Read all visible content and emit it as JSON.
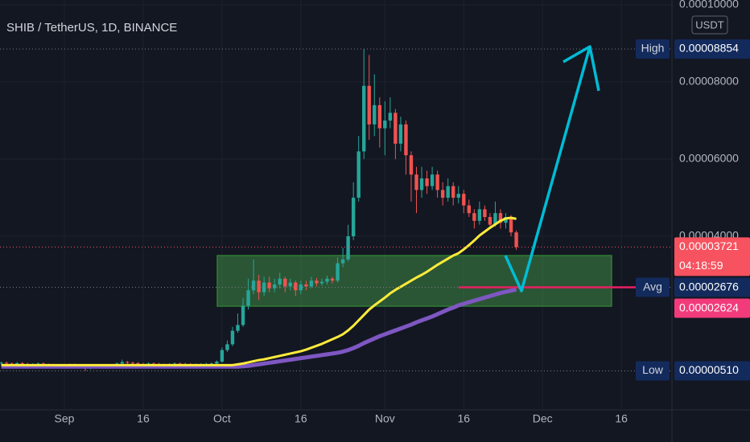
{
  "chart_data": {
    "type": "candlestick",
    "title": "SHIB / TetherUS, 1D, BINANCE",
    "currency": "USDT",
    "up_color": "#26a69a",
    "down_color": "#ef5350",
    "grid": true,
    "ylim": [
      -5e-06,
      0.00010125
    ],
    "yticks": [
      {
        "value": 0.0001,
        "label": "0.00010000"
      },
      {
        "value": 8e-05,
        "label": "0.00008000"
      },
      {
        "value": 6e-05,
        "label": "0.00006000"
      },
      {
        "value": 4e-05,
        "label": "0.00004000"
      }
    ],
    "categories": [
      null,
      null,
      null,
      null,
      null,
      null,
      null,
      null,
      null,
      null,
      null,
      null,
      "Sep",
      null,
      null,
      null,
      null,
      null,
      null,
      null,
      null,
      null,
      null,
      null,
      null,
      null,
      null,
      "16",
      null,
      null,
      null,
      null,
      null,
      null,
      null,
      null,
      null,
      null,
      null,
      null,
      null,
      null,
      "Oct",
      null,
      null,
      null,
      null,
      null,
      null,
      null,
      null,
      null,
      null,
      null,
      null,
      null,
      null,
      "16",
      null,
      null,
      null,
      null,
      null,
      null,
      null,
      null,
      null,
      null,
      null,
      null,
      null,
      null,
      null,
      "Nov",
      null,
      null,
      null,
      null,
      null,
      null,
      null,
      null,
      null,
      null,
      null,
      null,
      null,
      null,
      "16",
      null,
      null,
      null,
      null,
      null,
      null,
      null,
      null,
      null,
      null,
      null,
      null,
      null,
      null,
      "Dec",
      null,
      null,
      null,
      null,
      null,
      null,
      null,
      null,
      null,
      null,
      null,
      null,
      null,
      null,
      "16"
    ],
    "open": [
      7e-06,
      7.2e-06,
      7e-06,
      6.8e-06,
      7.1e-06,
      6.9e-06,
      6.6e-06,
      6.8e-06,
      7e-06,
      6.7e-06,
      6.5e-06,
      6.6e-06,
      6.4e-06,
      6.5e-06,
      6.7e-06,
      6.6e-06,
      6.2e-06,
      5.8e-06,
      6e-06,
      6.3e-06,
      6.5e-06,
      6.4e-06,
      6.6e-06,
      7e-06,
      7.4e-06,
      7.2e-06,
      7.1e-06,
      6.9e-06,
      6.8e-06,
      7e-06,
      6.9e-06,
      6.7e-06,
      6.6e-06,
      6.8e-06,
      7e-06,
      6.9e-06,
      6.8e-06,
      6.7e-06,
      6.6e-06,
      6.8e-06,
      6.9e-06,
      7e-06,
      7.5e-06,
      1.05e-05,
      1.2e-05,
      1.55e-05,
      1.7e-05,
      2.2e-05,
      2.6e-05,
      2.85e-05,
      2.55e-05,
      2.8e-05,
      2.65e-05,
      2.75e-05,
      2.9e-05,
      2.7e-05,
      2.8e-05,
      2.6e-05,
      2.75e-05,
      2.7e-05,
      2.85e-05,
      2.78e-05,
      2.82e-05,
      2.9e-05,
      2.85e-05,
      3.3e-05,
      3.4e-05,
      4e-05,
      5e-05,
      6.2e-05,
      7.9e-05,
      6.9e-05,
      7.4e-05,
      6.8e-05,
      7e-05,
      7.2e-05,
      6.4e-05,
      6.9e-05,
      6.1e-05,
      5.6e-05,
      5.2e-05,
      5.5e-05,
      5.3e-05,
      5.6e-05,
      5.2e-05,
      5e-05,
      5.3e-05,
      5e-05,
      5.1e-05,
      4.8e-05,
      4.6e-05,
      4.4e-05,
      4.7e-05,
      4.5e-05,
      4.3e-05,
      4.6e-05,
      4.35e-05,
      4.5e-05,
      4.1e-05,
      null,
      null,
      null,
      null,
      null,
      null,
      null,
      null,
      null,
      null,
      null,
      null,
      null,
      null,
      null,
      null,
      null,
      null,
      null,
      null
    ],
    "high": [
      7.5e-06,
      7.5e-06,
      7.3e-06,
      7.4e-06,
      7.4e-06,
      7.2e-06,
      7.1e-06,
      7.3e-06,
      7.3e-06,
      7e-06,
      6.9e-06,
      6.9e-06,
      6.8e-06,
      7e-06,
      7e-06,
      6.9e-06,
      6.5e-06,
      6.3e-06,
      6.6e-06,
      6.8e-06,
      6.8e-06,
      6.9e-06,
      7.3e-06,
      8e-06,
      7.7e-06,
      7.5e-06,
      7.4e-06,
      7.2e-06,
      7.3e-06,
      7.3e-06,
      7.2e-06,
      7e-06,
      7.1e-06,
      7.3e-06,
      7.3e-06,
      7.2e-06,
      7.1e-06,
      7e-06,
      7.1e-06,
      7.2e-06,
      7.3e-06,
      7.8e-06,
      1.12e-05,
      1.3e-05,
      1.65e-05,
      2e-05,
      2.4e-05,
      2.9e-05,
      3.4e-05,
      3e-05,
      2.95e-05,
      2.95e-05,
      2.9e-05,
      3.05e-05,
      2.95e-05,
      2.9e-05,
      2.85e-05,
      2.85e-05,
      2.85e-05,
      2.95e-05,
      2.92e-05,
      2.9e-05,
      2.98e-05,
      2.95e-05,
      3.45e-05,
      3.7e-05,
      4.3e-05,
      5.4e-05,
      6.6e-05,
      8.854e-05,
      8.7e-05,
      8.2e-05,
      7.6e-05,
      7.5e-05,
      7.6e-05,
      7.3e-05,
      7.1e-05,
      7e-05,
      6.2e-05,
      5.8e-05,
      5.8e-05,
      5.7e-05,
      5.8e-05,
      5.7e-05,
      5.4e-05,
      5.5e-05,
      5.4e-05,
      5.3e-05,
      5.2e-05,
      4.95e-05,
      4.7e-05,
      4.9e-05,
      4.8e-05,
      4.6e-05,
      4.9e-05,
      4.7e-05,
      4.6e-05,
      4.55e-05,
      4.15e-05,
      null,
      null,
      null,
      null,
      null,
      null,
      null,
      null,
      null,
      null,
      null,
      null,
      null,
      null,
      null,
      null,
      null,
      null,
      null,
      null
    ],
    "low": [
      6.7e-06,
      6.7e-06,
      6.5e-06,
      6.5e-06,
      6.6e-06,
      6.3e-06,
      6.3e-06,
      6.5e-06,
      6.4e-06,
      6.2e-06,
      6.2e-06,
      6.1e-06,
      6.1e-06,
      6.2e-06,
      6.3e-06,
      5.9e-06,
      5.1e-06,
      5.5e-06,
      5.7e-06,
      6e-06,
      6.1e-06,
      6.1e-06,
      6.3e-06,
      6.7e-06,
      6.9e-06,
      6.8e-06,
      6.6e-06,
      6.5e-06,
      6.5e-06,
      6.6e-06,
      6.4e-06,
      6.3e-06,
      6.3e-06,
      6.5e-06,
      6.6e-06,
      6.5e-06,
      6.4e-06,
      6.3e-06,
      6.3e-06,
      6.5e-06,
      6.6e-06,
      6.7e-06,
      7.2e-06,
      1e-05,
      1.15e-05,
      1.5e-05,
      1.65e-05,
      2.1e-05,
      2.5e-05,
      2.35e-05,
      2.45e-05,
      2.55e-05,
      2.55e-05,
      2.65e-05,
      2.55e-05,
      2.6e-05,
      2.45e-05,
      2.5e-05,
      2.6e-05,
      2.65e-05,
      2.7e-05,
      2.72e-05,
      2.75e-05,
      2.78e-05,
      2.8e-05,
      3.2e-05,
      3.35e-05,
      3.9e-05,
      4.9e-05,
      6e-05,
      6.5e-05,
      6.6e-05,
      6.3e-05,
      6.1e-05,
      6.8e-05,
      6e-05,
      6.2e-05,
      5.6e-05,
      4.9e-05,
      4.6e-05,
      5e-05,
      5.1e-05,
      5.2e-05,
      5e-05,
      4.8e-05,
      4.9e-05,
      4.8e-05,
      4.85e-05,
      4.6e-05,
      4.5e-05,
      4.2e-05,
      4.3e-05,
      4.4e-05,
      4.2e-05,
      4.25e-05,
      4.2e-05,
      4.2e-05,
      4e-05,
      3.65e-05,
      null,
      null,
      null,
      null,
      null,
      null,
      null,
      null,
      null,
      null,
      null,
      null,
      null,
      null,
      null,
      null,
      null,
      null,
      null,
      null
    ],
    "close": [
      7.2e-06,
      7e-06,
      6.8e-06,
      7.1e-06,
      6.9e-06,
      6.6e-06,
      6.8e-06,
      7e-06,
      6.7e-06,
      6.5e-06,
      6.6e-06,
      6.4e-06,
      6.5e-06,
      6.7e-06,
      6.6e-06,
      6.2e-06,
      5.8e-06,
      6e-06,
      6.3e-06,
      6.5e-06,
      6.4e-06,
      6.6e-06,
      7e-06,
      7.4e-06,
      7.2e-06,
      7.1e-06,
      6.9e-06,
      6.8e-06,
      7e-06,
      6.9e-06,
      6.7e-06,
      6.6e-06,
      6.8e-06,
      7e-06,
      6.9e-06,
      6.8e-06,
      6.7e-06,
      6.6e-06,
      6.8e-06,
      6.9e-06,
      7e-06,
      7.5e-06,
      1.05e-05,
      1.2e-05,
      1.55e-05,
      1.7e-05,
      2.2e-05,
      2.6e-05,
      2.85e-05,
      2.55e-05,
      2.8e-05,
      2.65e-05,
      2.75e-05,
      2.9e-05,
      2.7e-05,
      2.8e-05,
      2.6e-05,
      2.75e-05,
      2.7e-05,
      2.85e-05,
      2.78e-05,
      2.82e-05,
      2.9e-05,
      2.85e-05,
      3.3e-05,
      3.4e-05,
      4e-05,
      5e-05,
      6.2e-05,
      7.9e-05,
      6.9e-05,
      7.4e-05,
      6.8e-05,
      7e-05,
      7.2e-05,
      6.4e-05,
      6.9e-05,
      6.1e-05,
      5.6e-05,
      5.2e-05,
      5.5e-05,
      5.3e-05,
      5.6e-05,
      5.2e-05,
      5e-05,
      5.3e-05,
      5e-05,
      5.1e-05,
      4.8e-05,
      4.6e-05,
      4.4e-05,
      4.7e-05,
      4.5e-05,
      4.3e-05,
      4.6e-05,
      4.35e-05,
      4.5e-05,
      4.1e-05,
      3.721e-05,
      null,
      null,
      null,
      null,
      null,
      null,
      null,
      null,
      null,
      null,
      null,
      null,
      null,
      null,
      null,
      null,
      null,
      null,
      null,
      null
    ],
    "series": [
      {
        "color": "#7e57c2",
        "values": [
          6.2e-06,
          6.2e-06,
          6.2e-06,
          6.2e-06,
          6.2e-06,
          6.2e-06,
          6.2e-06,
          6.2e-06,
          6.2e-06,
          6.2e-06,
          6.2e-06,
          6.2e-06,
          6.2e-06,
          6.2e-06,
          6.2e-06,
          6.2e-06,
          6.2e-06,
          6.2e-06,
          6.2e-06,
          6.2e-06,
          6.2e-06,
          6.2e-06,
          6.2e-06,
          6.2e-06,
          6.2e-06,
          6.2e-06,
          6.2e-06,
          6.2e-06,
          6.2e-06,
          6.2e-06,
          6.2e-06,
          6.2e-06,
          6.2e-06,
          6.2e-06,
          6.2e-06,
          6.2e-06,
          6.2e-06,
          6.2e-06,
          6.2e-06,
          6.2e-06,
          6.2e-06,
          6.2e-06,
          6.2e-06,
          6.2e-06,
          6.2e-06,
          6.2e-06,
          6.3e-06,
          6.4e-06,
          6.6e-06,
          6.8e-06,
          7e-06,
          7.2e-06,
          7.4e-06,
          7.6e-06,
          7.8e-06,
          8e-06,
          8.2e-06,
          8.4e-06,
          8.6e-06,
          8.8e-06,
          9e-06,
          9.2e-06,
          9.4e-06,
          9.6e-06,
          9.8e-06,
          1.01e-05,
          1.05e-05,
          1.1e-05,
          1.16e-05,
          1.23e-05,
          1.29e-05,
          1.35e-05,
          1.41e-05,
          1.46e-05,
          1.51e-05,
          1.56e-05,
          1.61e-05,
          1.66e-05,
          1.71e-05,
          1.77e-05,
          1.82e-05,
          1.87e-05,
          1.92e-05,
          1.98e-05,
          2.04e-05,
          2.1e-05,
          2.15e-05,
          2.21e-05,
          2.25e-05,
          2.29e-05,
          2.33e-05,
          2.37e-05,
          2.41e-05,
          2.45e-05,
          2.49e-05,
          2.53e-05,
          2.56e-05,
          2.59e-05,
          2.62e-05,
          null,
          null,
          null,
          null,
          null,
          null,
          null,
          null,
          null,
          null,
          null,
          null,
          null,
          null,
          null,
          null,
          null,
          null,
          null,
          null
        ]
      },
      {
        "color": "#ffeb3b",
        "values": [
          6.6e-06,
          6.6e-06,
          6.6e-06,
          6.6e-06,
          6.6e-06,
          6.6e-06,
          6.6e-06,
          6.6e-06,
          6.6e-06,
          6.6e-06,
          6.6e-06,
          6.6e-06,
          6.6e-06,
          6.6e-06,
          6.6e-06,
          6.6e-06,
          6.6e-06,
          6.6e-06,
          6.6e-06,
          6.6e-06,
          6.6e-06,
          6.6e-06,
          6.6e-06,
          6.6e-06,
          6.6e-06,
          6.6e-06,
          6.6e-06,
          6.6e-06,
          6.6e-06,
          6.6e-06,
          6.6e-06,
          6.6e-06,
          6.6e-06,
          6.6e-06,
          6.6e-06,
          6.6e-06,
          6.6e-06,
          6.6e-06,
          6.6e-06,
          6.6e-06,
          6.6e-06,
          6.6e-06,
          6.6e-06,
          6.6e-06,
          6.6e-06,
          6.8e-06,
          7e-06,
          7.3e-06,
          7.6e-06,
          7.9e-06,
          8.1e-06,
          8.4e-06,
          8.7e-06,
          9e-06,
          9.3e-06,
          9.6e-06,
          9.9e-06,
          1.02e-05,
          1.06e-05,
          1.11e-05,
          1.16e-05,
          1.21e-05,
          1.27e-05,
          1.33e-05,
          1.39e-05,
          1.46e-05,
          1.56e-05,
          1.68e-05,
          1.82e-05,
          1.96e-05,
          2.1e-05,
          2.21e-05,
          2.31e-05,
          2.41e-05,
          2.52e-05,
          2.61e-05,
          2.69e-05,
          2.77e-05,
          2.85e-05,
          2.93e-05,
          3e-05,
          3.08e-05,
          3.17e-05,
          3.26e-05,
          3.34e-05,
          3.42e-05,
          3.5e-05,
          3.56e-05,
          3.66e-05,
          3.77e-05,
          3.89e-05,
          4.02e-05,
          4.12e-05,
          4.22e-05,
          4.31e-05,
          4.4e-05,
          4.46e-05,
          4.48e-05,
          4.45e-05,
          null,
          null,
          null,
          null,
          null,
          null,
          null,
          null,
          null,
          null,
          null,
          null,
          null,
          null,
          null,
          null,
          null,
          null,
          null,
          null
        ]
      }
    ],
    "markers": [
      {
        "label": "High",
        "value": 8.854e-05,
        "value_label": "0.00008854",
        "color": "#132a5c",
        "line": "#787b86"
      },
      {
        "value": 3.721e-05,
        "value_label": "0.00003721",
        "countdown": "04:18:59",
        "color": "#f7525f",
        "line": "#f7525f"
      },
      {
        "label": "Avg",
        "value": 2.676e-05,
        "value_label": "0.00002676",
        "color": "#132a5c",
        "line": "#787b86"
      },
      {
        "value": 2.624e-05,
        "value_label": "0.00002624",
        "color": "#f23b7a"
      },
      {
        "label": "Low",
        "value": 5.1e-06,
        "value_label": "0.00000510",
        "color": "#132a5c",
        "line": "#787b86"
      }
    ]
  }
}
